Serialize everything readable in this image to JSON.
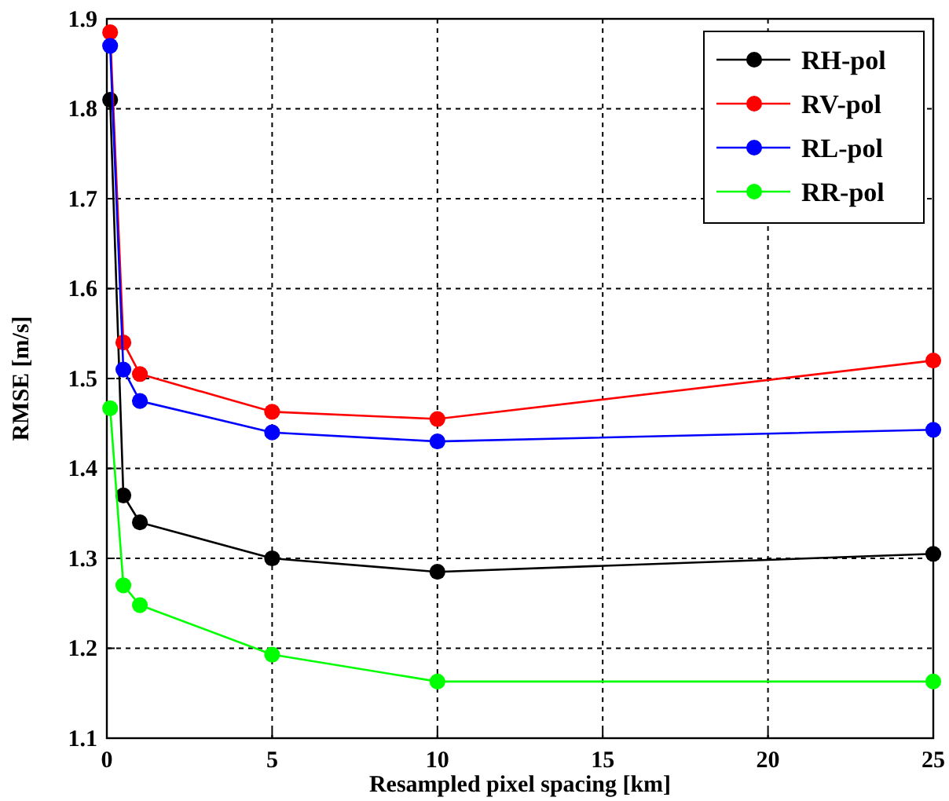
{
  "chart_data": {
    "type": "line",
    "xlabel": "Resampled pixel spacing [km]",
    "ylabel": "RMSE [m/s]",
    "x": [
      0.1,
      0.5,
      1,
      5,
      10,
      25
    ],
    "series": [
      {
        "name": "RH-pol",
        "color": "#000000",
        "values": [
          1.81,
          1.37,
          1.34,
          1.3,
          1.285,
          1.305
        ]
      },
      {
        "name": "RV-pol",
        "color": "#ff0000",
        "values": [
          1.885,
          1.54,
          1.505,
          1.463,
          1.455,
          1.52
        ]
      },
      {
        "name": "RL-pol",
        "color": "#0000ff",
        "values": [
          1.87,
          1.51,
          1.475,
          1.44,
          1.43,
          1.443
        ]
      },
      {
        "name": "RR-pol",
        "color": "#00ff00",
        "values": [
          1.467,
          1.27,
          1.248,
          1.193,
          1.163,
          1.163
        ]
      }
    ],
    "xlim": [
      0,
      25
    ],
    "xticks": [
      0,
      5,
      10,
      15,
      20,
      25
    ],
    "ylim": [
      1.1,
      1.9
    ],
    "yticks": [
      1.1,
      1.2,
      1.3,
      1.4,
      1.5,
      1.6,
      1.7,
      1.8,
      1.9
    ],
    "grid": true,
    "legend": "top right",
    "marker": "circle",
    "line_style": "solid"
  }
}
